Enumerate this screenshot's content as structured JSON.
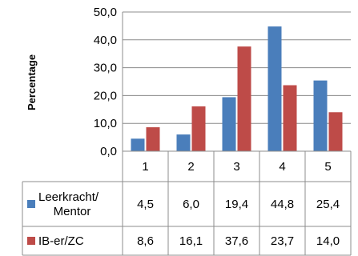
{
  "chart_data": {
    "type": "bar",
    "ylabel": "Percentage",
    "ylim": [
      0,
      50
    ],
    "y_ticks": [
      "0,0",
      "10,0",
      "20,0",
      "30,0",
      "40,0",
      "50,0"
    ],
    "grid": true,
    "legend": "data-table",
    "categories": [
      "1",
      "2",
      "3",
      "4",
      "5"
    ],
    "series": [
      {
        "name_lines": [
          "Leerkracht/",
          "Mentor"
        ],
        "color": "#4a7ebb",
        "values": [
          4.5,
          6.0,
          19.4,
          44.8,
          25.4
        ],
        "labels": [
          "4,5",
          "6,0",
          "19,4",
          "44,8",
          "25,4"
        ]
      },
      {
        "name_lines": [
          "IB-er/ZC"
        ],
        "color": "#be4b48",
        "values": [
          8.6,
          16.1,
          37.6,
          23.7,
          14.0
        ],
        "labels": [
          "8,6",
          "16,1",
          "37,6",
          "23,7",
          "14,0"
        ]
      }
    ]
  }
}
